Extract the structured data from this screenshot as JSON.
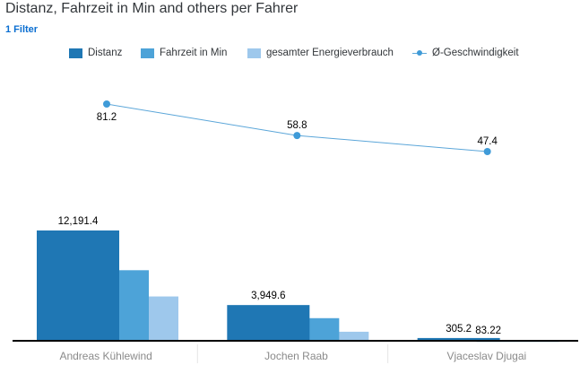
{
  "header": {
    "title": "Distanz, Fahrzeit in Min and others per Fahrer",
    "filter_label": "1 Filter"
  },
  "colors": {
    "distanz": "#1f77b4",
    "fahrzeit": "#4da3d8",
    "energie": "#9ec8ec",
    "geschwindigkeit": "#3f9bd8"
  },
  "chart_data": {
    "type": "bar",
    "categories": [
      "Andreas Kühlewind",
      "Jochen Raab",
      "Vjaceslav Djugai"
    ],
    "series": [
      {
        "name": "Distanz",
        "values": [
          12191.4,
          3949.6,
          305.2
        ],
        "labels": [
          "12,191.4",
          "3,949.6",
          "305.2"
        ]
      },
      {
        "name": "Fahrzeit in Min",
        "values": [
          7800,
          2500,
          83.22
        ],
        "labels": [
          "",
          "",
          "83.22"
        ]
      },
      {
        "name": "gesamter Energieverbrauch",
        "values": [
          4900,
          1000,
          15
        ],
        "labels": [
          "",
          "",
          ""
        ]
      }
    ],
    "line_series": {
      "name": "Ø-Geschwindigkeit",
      "values": [
        81.2,
        58.8,
        47.4
      ],
      "labels": [
        "81.2",
        "58.8",
        "47.4"
      ]
    },
    "ylim": [
      0,
      12191.4
    ],
    "line_ylim": [
      47.4,
      81.2
    ],
    "legend_position": "top"
  }
}
